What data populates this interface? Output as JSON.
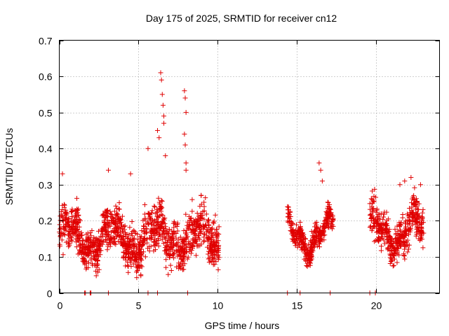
{
  "chart_data": {
    "type": "scatter",
    "title": "Day 175 of 2025, SRMTID for receiver cn12",
    "xlabel": "GPS time / hours",
    "ylabel": "SRMTID / TECUs",
    "xlim": [
      0,
      24
    ],
    "ylim": [
      0,
      0.7
    ],
    "xticks": [
      0,
      5,
      10,
      15,
      20
    ],
    "xtick_labels": [
      "0",
      "5",
      "10",
      "15",
      "20"
    ],
    "yticks": [
      0,
      0.1,
      0.2,
      0.3,
      0.4,
      0.5,
      0.6,
      0.7
    ],
    "ytick_labels": [
      "0",
      "0.1",
      "0.2",
      "0.3",
      "0.4",
      "0.5",
      "0.6",
      "0.7"
    ],
    "grid": true,
    "marker": "plus",
    "series": [
      {
        "name": "SRMTID",
        "color": "#e00000",
        "segments": [
          {
            "x_start": 0.0,
            "x_end": 10.1,
            "y_typical": 0.15,
            "y_spread": 0.07
          },
          {
            "x_start": 14.4,
            "x_end": 17.3,
            "y_typical": 0.16,
            "y_spread": 0.04
          },
          {
            "x_start": 19.6,
            "x_end": 23.0,
            "y_typical": 0.17,
            "y_spread": 0.06
          }
        ],
        "peaks": [
          {
            "x": 0.2,
            "y": 0.33
          },
          {
            "x": 3.1,
            "y": 0.34
          },
          {
            "x": 4.5,
            "y": 0.33
          },
          {
            "x": 5.6,
            "y": 0.4
          },
          {
            "x": 6.4,
            "y": 0.61
          },
          {
            "x": 6.45,
            "y": 0.59
          },
          {
            "x": 6.5,
            "y": 0.55
          },
          {
            "x": 6.55,
            "y": 0.52
          },
          {
            "x": 6.6,
            "y": 0.49
          },
          {
            "x": 6.6,
            "y": 0.47
          },
          {
            "x": 7.9,
            "y": 0.56
          },
          {
            "x": 7.95,
            "y": 0.54
          },
          {
            "x": 8.0,
            "y": 0.5
          },
          {
            "x": 7.9,
            "y": 0.44
          },
          {
            "x": 7.95,
            "y": 0.41
          },
          {
            "x": 8.0,
            "y": 0.36
          },
          {
            "x": 8.0,
            "y": 0.34
          },
          {
            "x": 6.2,
            "y": 0.45
          },
          {
            "x": 6.3,
            "y": 0.43
          },
          {
            "x": 6.7,
            "y": 0.38
          },
          {
            "x": 16.4,
            "y": 0.36
          },
          {
            "x": 16.5,
            "y": 0.34
          },
          {
            "x": 16.6,
            "y": 0.31
          },
          {
            "x": 21.8,
            "y": 0.31
          },
          {
            "x": 22.2,
            "y": 0.32
          },
          {
            "x": 22.8,
            "y": 0.3
          },
          {
            "x": 21.5,
            "y": 0.3
          }
        ],
        "zero_values_x": [
          1.6,
          1.65,
          1.95,
          2.0,
          3.1,
          5.6,
          6.2,
          8.1,
          14.4,
          15.2,
          17.1,
          19.6,
          19.95
        ]
      }
    ]
  }
}
